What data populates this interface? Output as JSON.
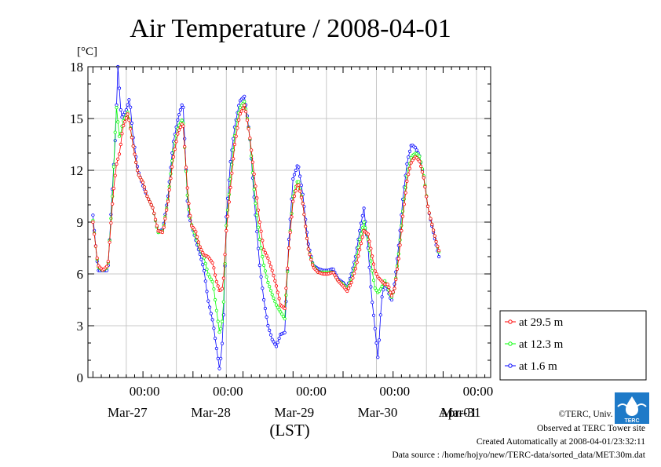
{
  "colors": {
    "s29_5": "#ff0000",
    "s12_3": "#00ff00",
    "s1_6": "#0000ff",
    "grid": "#c8c8c8",
    "logo": "#1e7ac8"
  },
  "chart_data": {
    "type": "line",
    "title": "Air Temperature / 2008-04-01",
    "ylabel": "[°C]",
    "xlabel": "(LST)",
    "ylim": [
      0,
      18
    ],
    "yticks": [
      "0",
      "3",
      "6",
      "9",
      "12",
      "15",
      "18"
    ],
    "xlim_hours": [
      -44,
      0
    ],
    "x_midnight_label": "00:00",
    "x_day_labels": [
      "Mar-27",
      "Mar-28",
      "Mar-29",
      "Mar-30",
      "Mar-31",
      "Apr-01"
    ],
    "grid": true,
    "legend_position": "right, below plot middle",
    "series": [
      {
        "name": "at 29.5 m",
        "color": "#ff0000",
        "anchors": [
          [
            -48,
            9.0
          ],
          [
            -47.4,
            6.5
          ],
          [
            -46.8,
            6.2
          ],
          [
            -46.2,
            6.5
          ],
          [
            -45.6,
            10.5
          ],
          [
            -45.2,
            12.3
          ],
          [
            -44.8,
            13.0
          ],
          [
            -44.4,
            14.5
          ],
          [
            -43.8,
            15.3
          ],
          [
            -43.2,
            13.5
          ],
          [
            -42.6,
            11.8
          ],
          [
            -42,
            11.3
          ],
          [
            -41.5,
            10.5
          ],
          [
            -40.8,
            9.8
          ],
          [
            -40.2,
            8.5
          ],
          [
            -39.6,
            8.4
          ],
          [
            -39,
            10.2
          ],
          [
            -38.4,
            12.6
          ],
          [
            -37.8,
            14.2
          ],
          [
            -37.2,
            14.8
          ],
          [
            -36.6,
            10.5
          ],
          [
            -36.2,
            8.8
          ],
          [
            -35.7,
            8.5
          ],
          [
            -35.2,
            7.6
          ],
          [
            -34.7,
            7.1
          ],
          [
            -34.2,
            7.0
          ],
          [
            -33.6,
            6.6
          ],
          [
            -33.2,
            5.6
          ],
          [
            -32.8,
            5.0
          ],
          [
            -32.4,
            5.2
          ],
          [
            -32,
            8.5
          ],
          [
            -31.5,
            11.0
          ],
          [
            -31,
            13.5
          ],
          [
            -30.4,
            15.2
          ],
          [
            -29.8,
            15.8
          ],
          [
            -29.2,
            14.0
          ],
          [
            -28.6,
            11.5
          ],
          [
            -28,
            9.0
          ],
          [
            -27.5,
            7.4
          ],
          [
            -27,
            6.9
          ],
          [
            -26.5,
            6.2
          ],
          [
            -26,
            5.3
          ],
          [
            -25.5,
            4.2
          ],
          [
            -25,
            4.0
          ],
          [
            -24.5,
            7.5
          ],
          [
            -24,
            10.2
          ],
          [
            -23.4,
            11.3
          ],
          [
            -22.8,
            10.0
          ],
          [
            -22.2,
            7.5
          ],
          [
            -21.6,
            6.4
          ],
          [
            -21,
            6.1
          ],
          [
            -20.4,
            6.0
          ],
          [
            -19.8,
            6.0
          ],
          [
            -19.2,
            6.1
          ],
          [
            -18.6,
            5.6
          ],
          [
            -18,
            5.3
          ],
          [
            -17.5,
            5.0
          ],
          [
            -17,
            5.5
          ],
          [
            -16.5,
            6.3
          ],
          [
            -16,
            7.4
          ],
          [
            -15.5,
            8.5
          ],
          [
            -15,
            8.3
          ],
          [
            -14.6,
            7.3
          ],
          [
            -14.2,
            6.2
          ],
          [
            -13.8,
            5.8
          ],
          [
            -13.4,
            5.6
          ],
          [
            -13,
            5.4
          ],
          [
            -12.6,
            5.4
          ],
          [
            -12.2,
            4.7
          ],
          [
            -11.8,
            5.2
          ],
          [
            -11.3,
            7.0
          ],
          [
            -10.8,
            9.5
          ],
          [
            -10.3,
            11.5
          ],
          [
            -9.8,
            12.5
          ],
          [
            -9.3,
            12.8
          ],
          [
            -8.8,
            12.5
          ],
          [
            -8.3,
            11.5
          ],
          [
            -7.8,
            9.8
          ],
          [
            -7.3,
            8.8
          ],
          [
            -6.8,
            7.8
          ],
          [
            -6.4,
            7.2
          ]
        ]
      },
      {
        "name": "at 12.3 m",
        "color": "#00ff00",
        "anchors": [
          [
            -48,
            9.1
          ],
          [
            -47.4,
            6.4
          ],
          [
            -46.8,
            6.2
          ],
          [
            -46.2,
            6.4
          ],
          [
            -45.6,
            11.0
          ],
          [
            -45.2,
            15.8
          ],
          [
            -44.8,
            13.8
          ],
          [
            -44.4,
            14.8
          ],
          [
            -43.8,
            15.4
          ],
          [
            -43.2,
            13.5
          ],
          [
            -42.6,
            11.8
          ],
          [
            -42,
            11.3
          ],
          [
            -41.5,
            10.5
          ],
          [
            -40.8,
            9.8
          ],
          [
            -40.2,
            8.4
          ],
          [
            -39.6,
            8.5
          ],
          [
            -39,
            10.3
          ],
          [
            -38.4,
            13.0
          ],
          [
            -37.8,
            14.5
          ],
          [
            -37.2,
            15.0
          ],
          [
            -36.6,
            10.0
          ],
          [
            -36.2,
            8.9
          ],
          [
            -35.7,
            8.2
          ],
          [
            -35.2,
            7.5
          ],
          [
            -34.7,
            7.0
          ],
          [
            -34.2,
            6.0
          ],
          [
            -33.6,
            5.5
          ],
          [
            -33.2,
            4.0
          ],
          [
            -32.8,
            2.5
          ],
          [
            -32.4,
            3.5
          ],
          [
            -32,
            8.8
          ],
          [
            -31.5,
            11.5
          ],
          [
            -31,
            14.0
          ],
          [
            -30.4,
            15.6
          ],
          [
            -29.8,
            16.0
          ],
          [
            -29.2,
            14.0
          ],
          [
            -28.6,
            10.5
          ],
          [
            -28,
            8.0
          ],
          [
            -27.5,
            6.5
          ],
          [
            -27,
            5.5
          ],
          [
            -26.5,
            4.8
          ],
          [
            -26,
            4.2
          ],
          [
            -25.5,
            3.8
          ],
          [
            -25,
            3.4
          ],
          [
            -24.5,
            7.5
          ],
          [
            -24,
            10.5
          ],
          [
            -23.4,
            11.5
          ],
          [
            -22.8,
            10.0
          ],
          [
            -22.2,
            7.5
          ],
          [
            -21.6,
            6.5
          ],
          [
            -21,
            6.1
          ],
          [
            -20.4,
            6.1
          ],
          [
            -19.8,
            6.1
          ],
          [
            -19.2,
            6.1
          ],
          [
            -18.6,
            5.6
          ],
          [
            -18,
            5.4
          ],
          [
            -17.5,
            5.1
          ],
          [
            -17,
            5.7
          ],
          [
            -16.5,
            6.6
          ],
          [
            -16,
            8.0
          ],
          [
            -15.5,
            9.0
          ],
          [
            -15,
            8.0
          ],
          [
            -14.6,
            6.5
          ],
          [
            -14.2,
            5.2
          ],
          [
            -13.8,
            4.9
          ],
          [
            -13.4,
            5.2
          ],
          [
            -13,
            5.6
          ],
          [
            -12.6,
            5.2
          ],
          [
            -12.2,
            4.6
          ],
          [
            -11.8,
            5.2
          ],
          [
            -11.3,
            7.3
          ],
          [
            -10.8,
            9.8
          ],
          [
            -10.3,
            11.8
          ],
          [
            -9.8,
            12.8
          ],
          [
            -9.3,
            13.0
          ],
          [
            -8.8,
            12.8
          ],
          [
            -8.3,
            11.6
          ],
          [
            -7.8,
            9.8
          ],
          [
            -7.3,
            8.8
          ],
          [
            -6.8,
            7.8
          ],
          [
            -6.4,
            7.1
          ]
        ]
      },
      {
        "name": "at 1.6 m",
        "color": "#0000ff",
        "anchors": [
          [
            -48,
            9.4
          ],
          [
            -47.4,
            6.2
          ],
          [
            -46.8,
            6.2
          ],
          [
            -46.2,
            6.2
          ],
          [
            -45.6,
            11.5
          ],
          [
            -45.3,
            14.0
          ],
          [
            -45.0,
            18.0
          ],
          [
            -44.6,
            15.0
          ],
          [
            -44.0,
            15.5
          ],
          [
            -43.6,
            16.2
          ],
          [
            -43.2,
            14.0
          ],
          [
            -42.6,
            12.0
          ],
          [
            -42,
            11.1
          ],
          [
            -41.5,
            10.5
          ],
          [
            -40.8,
            9.8
          ],
          [
            -40.2,
            8.4
          ],
          [
            -39.6,
            8.6
          ],
          [
            -39,
            10.5
          ],
          [
            -38.4,
            13.5
          ],
          [
            -37.8,
            15.0
          ],
          [
            -37.2,
            16.0
          ],
          [
            -36.6,
            9.5
          ],
          [
            -36.2,
            8.9
          ],
          [
            -35.7,
            8.0
          ],
          [
            -35.2,
            7.2
          ],
          [
            -34.7,
            6.3
          ],
          [
            -34.2,
            4.5
          ],
          [
            -33.6,
            3.2
          ],
          [
            -33.2,
            1.8
          ],
          [
            -32.8,
            0.4
          ],
          [
            -32.4,
            2.5
          ],
          [
            -32,
            9.3
          ],
          [
            -31.5,
            12.5
          ],
          [
            -31,
            14.5
          ],
          [
            -30.4,
            16.0
          ],
          [
            -29.8,
            16.3
          ],
          [
            -29.2,
            14.0
          ],
          [
            -28.6,
            10.0
          ],
          [
            -28,
            6.5
          ],
          [
            -27.5,
            4.5
          ],
          [
            -27,
            3.0
          ],
          [
            -26.5,
            2.2
          ],
          [
            -26,
            1.8
          ],
          [
            -25.5,
            2.5
          ],
          [
            -25,
            2.6
          ],
          [
            -24.5,
            8.0
          ],
          [
            -24,
            11.5
          ],
          [
            -23.4,
            12.4
          ],
          [
            -22.8,
            10.5
          ],
          [
            -22.2,
            7.8
          ],
          [
            -21.6,
            6.5
          ],
          [
            -21,
            6.3
          ],
          [
            -20.4,
            6.2
          ],
          [
            -19.8,
            6.2
          ],
          [
            -19.2,
            6.3
          ],
          [
            -18.6,
            5.7
          ],
          [
            -18,
            5.5
          ],
          [
            -17.5,
            5.2
          ],
          [
            -17,
            6.0
          ],
          [
            -16.5,
            7.0
          ],
          [
            -16,
            8.5
          ],
          [
            -15.5,
            9.8
          ],
          [
            -15,
            7.5
          ],
          [
            -14.6,
            4.8
          ],
          [
            -14.2,
            3.0
          ],
          [
            -13.8,
            1.0
          ],
          [
            -13.4,
            4.5
          ],
          [
            -13,
            5.5
          ],
          [
            -12.6,
            5.0
          ],
          [
            -12.2,
            4.4
          ],
          [
            -11.8,
            5.5
          ],
          [
            -11.3,
            7.8
          ],
          [
            -10.8,
            10.5
          ],
          [
            -10.3,
            12.5
          ],
          [
            -9.8,
            13.5
          ],
          [
            -9.3,
            13.3
          ],
          [
            -8.8,
            12.8
          ],
          [
            -8.3,
            11.5
          ],
          [
            -7.8,
            9.8
          ],
          [
            -7.3,
            8.7
          ],
          [
            -6.8,
            7.6
          ],
          [
            -6.4,
            6.8
          ]
        ]
      }
    ]
  },
  "footer": {
    "copyright": "©TERC, Univ. Tsukuba",
    "observed": "Observed at TERC Tower site",
    "created": "Created Automatically at 2008-04-01/23:32:11",
    "source": "Data source : /home/hojyo/new/TERC-data/sorted_data/MET.30m.dat",
    "logo_text": "TERC"
  }
}
